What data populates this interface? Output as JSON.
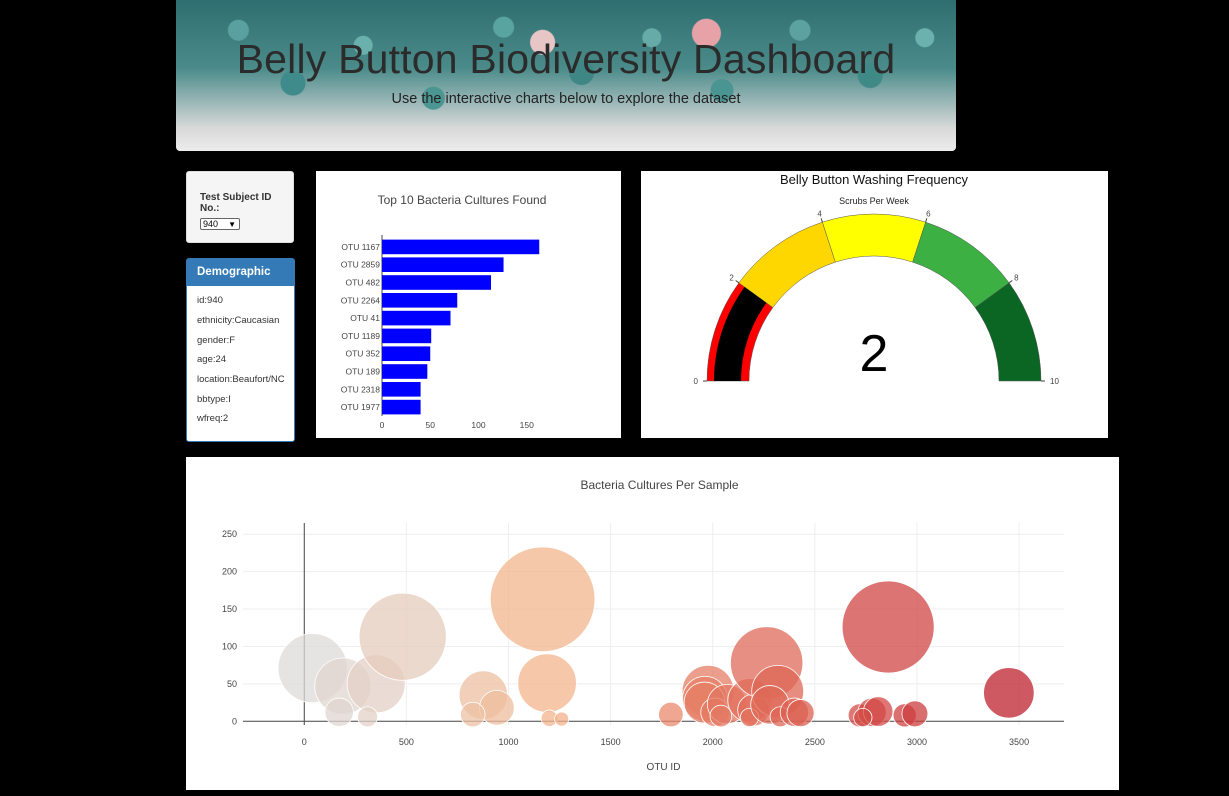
{
  "header": {
    "title": "Belly Button Biodiversity Dashboard",
    "subtitle": "Use the interactive charts below to explore the dataset"
  },
  "selector": {
    "label": "Test Subject ID No.:",
    "value": "940"
  },
  "demographics": {
    "title": "Demographic Info",
    "rows": [
      "id:940",
      "ethnicity:Caucasian",
      "gender:F",
      "age:24",
      "location:Beaufort/NC",
      "bbtype:I",
      "wfreq:2"
    ]
  },
  "chart_data": [
    {
      "type": "bar",
      "orientation": "horizontal",
      "title": "Top 10 Bacteria Cultures Found",
      "categories": [
        "OTU 1167",
        "OTU 2859",
        "OTU 482",
        "OTU 2264",
        "OTU 41",
        "OTU 1189",
        "OTU 352",
        "OTU 189",
        "OTU 2318",
        "OTU 1977"
      ],
      "values": [
        163,
        126,
        113,
        78,
        71,
        51,
        50,
        47,
        40,
        40
      ],
      "xlim": [
        0,
        170
      ],
      "xticks": [
        0,
        50,
        100,
        150
      ],
      "color": "#0000ff"
    },
    {
      "type": "gauge",
      "title": "Belly Button Washing Frequency",
      "subtitle": "Scrubs Per Week",
      "value": 2,
      "range": [
        0,
        10
      ],
      "ticks": [
        0,
        2,
        4,
        6,
        8,
        10
      ],
      "steps": [
        {
          "from": 0,
          "to": 2,
          "color": "#ff0000"
        },
        {
          "from": 2,
          "to": 4,
          "color": "#ffd700"
        },
        {
          "from": 4,
          "to": 6,
          "color": "#ffff00"
        },
        {
          "from": 6,
          "to": 8,
          "color": "#3cb043"
        },
        {
          "from": 8,
          "to": 10,
          "color": "#0b6623"
        }
      ],
      "bar_color": "#000000"
    },
    {
      "type": "scatter",
      "title": "Bacteria Cultures Per Sample",
      "xlabel": "OTU ID",
      "xlim": [
        -300,
        3720
      ],
      "ylim": [
        -5,
        265
      ],
      "xticks": [
        0,
        500,
        1000,
        1500,
        2000,
        2500,
        3000,
        3500
      ],
      "yticks": [
        0,
        50,
        100,
        150,
        200,
        250
      ],
      "points": [
        {
          "x": 41,
          "y": 71
        },
        {
          "x": 189,
          "y": 47
        },
        {
          "x": 171,
          "y": 12
        },
        {
          "x": 352,
          "y": 50
        },
        {
          "x": 482,
          "y": 113
        },
        {
          "x": 310,
          "y": 6
        },
        {
          "x": 877,
          "y": 35
        },
        {
          "x": 943,
          "y": 18
        },
        {
          "x": 825,
          "y": 9
        },
        {
          "x": 1167,
          "y": 163
        },
        {
          "x": 1189,
          "y": 51
        },
        {
          "x": 1200,
          "y": 4
        },
        {
          "x": 1260,
          "y": 3
        },
        {
          "x": 1795,
          "y": 9
        },
        {
          "x": 1977,
          "y": 40
        },
        {
          "x": 1962,
          "y": 30
        },
        {
          "x": 1960,
          "y": 25
        },
        {
          "x": 2011,
          "y": 12
        },
        {
          "x": 2070,
          "y": 23
        },
        {
          "x": 2040,
          "y": 7
        },
        {
          "x": 2180,
          "y": 28
        },
        {
          "x": 2200,
          "y": 15
        },
        {
          "x": 2180,
          "y": 5
        },
        {
          "x": 2264,
          "y": 78
        },
        {
          "x": 2318,
          "y": 40
        },
        {
          "x": 2280,
          "y": 22
        },
        {
          "x": 2330,
          "y": 6
        },
        {
          "x": 2400,
          "y": 12
        },
        {
          "x": 2430,
          "y": 11
        },
        {
          "x": 2720,
          "y": 8
        },
        {
          "x": 2780,
          "y": 12
        },
        {
          "x": 2810,
          "y": 13
        },
        {
          "x": 2735,
          "y": 5
        },
        {
          "x": 2859,
          "y": 126
        },
        {
          "x": 2940,
          "y": 8
        },
        {
          "x": 2990,
          "y": 10
        },
        {
          "x": 3450,
          "y": 38
        }
      ]
    }
  ]
}
